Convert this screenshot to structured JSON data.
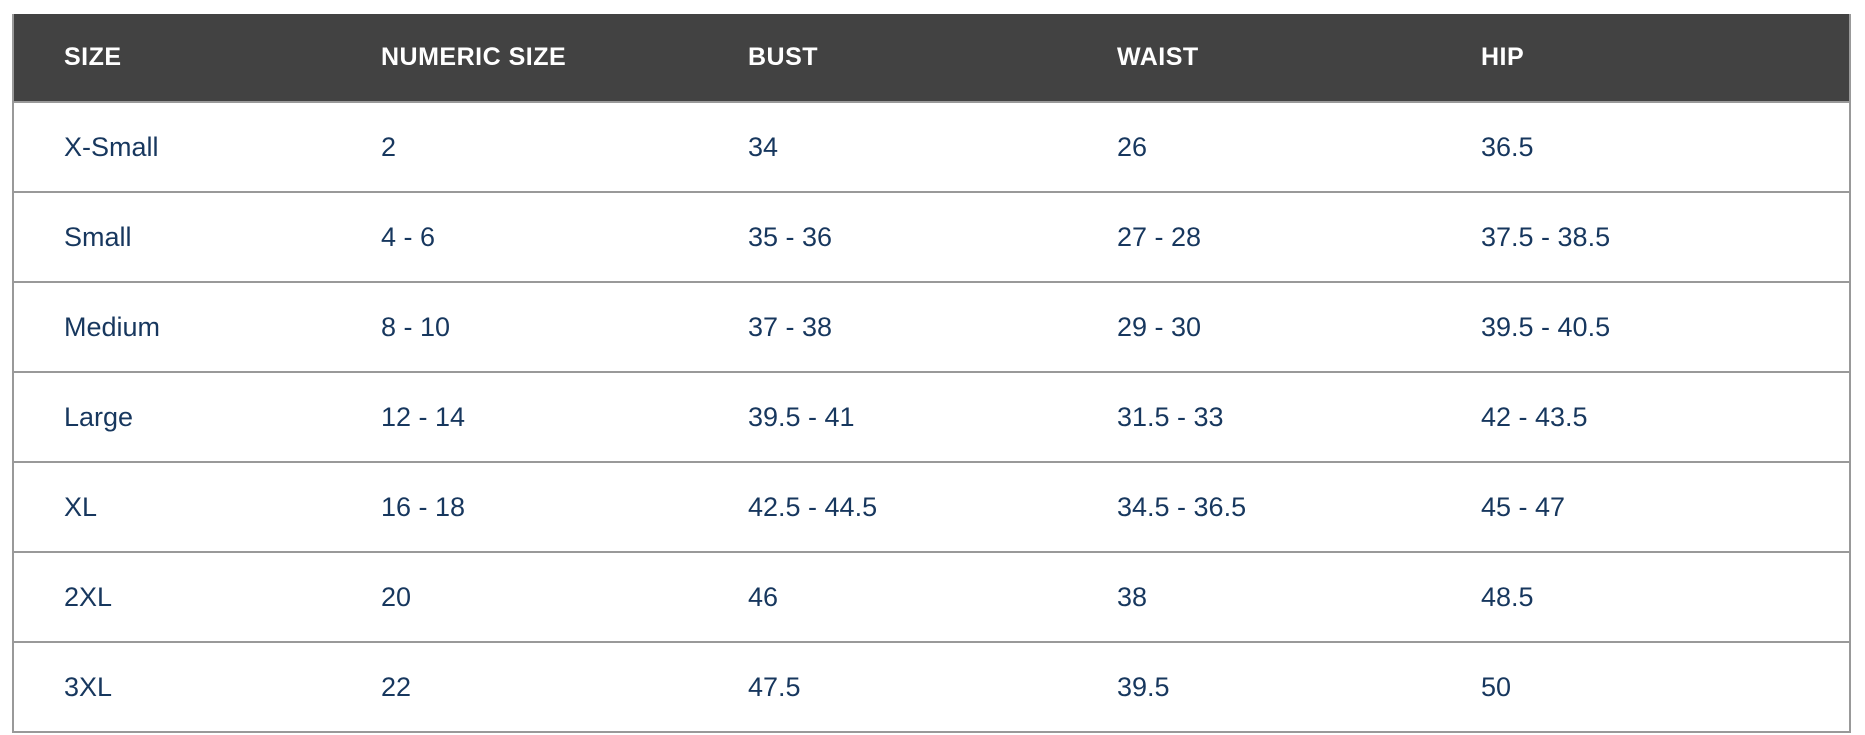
{
  "size_chart": {
    "columns": [
      "SIZE",
      "NUMERIC SIZE",
      "BUST",
      "WAIST",
      "HIP"
    ],
    "rows": [
      [
        "X-Small",
        "2",
        "34",
        "26",
        "36.5"
      ],
      [
        "Small",
        "4 - 6",
        "35 - 36",
        "27 - 28",
        "37.5 - 38.5"
      ],
      [
        "Medium",
        "8 - 10",
        "37 - 38",
        "29 - 30",
        "39.5 - 40.5"
      ],
      [
        "Large",
        "12 - 14",
        "39.5 - 41",
        "31.5 - 33",
        "42 - 43.5"
      ],
      [
        "XL",
        "16 - 18",
        "42.5 - 44.5",
        "34.5 - 36.5",
        "45 - 47"
      ],
      [
        "2XL",
        "20",
        "46",
        "38",
        "48.5"
      ],
      [
        "3XL",
        "22",
        "47.5",
        "39.5",
        "50"
      ]
    ],
    "colors": {
      "header_background": "#424242",
      "header_text": "#ffffff",
      "body_text": "#17375e",
      "border": "#999999",
      "row_background": "#ffffff"
    }
  }
}
